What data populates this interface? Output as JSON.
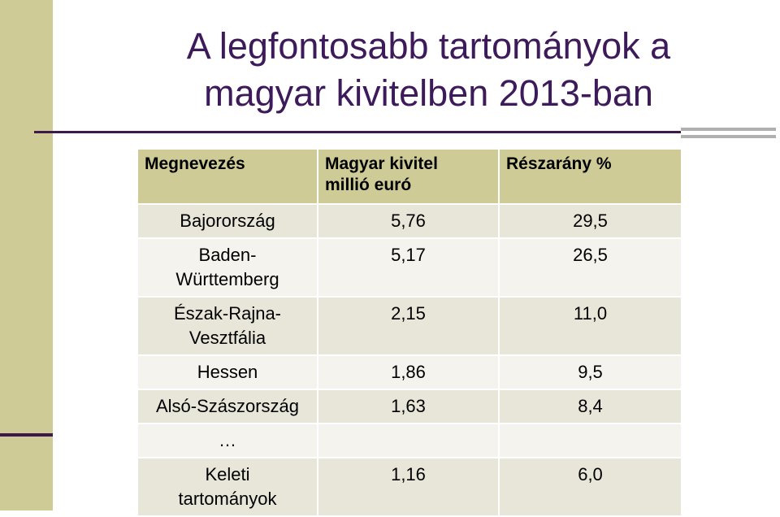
{
  "header": {
    "title": "A legfontosabb tartományok a\nmagyar kivitelben 2013-ban"
  },
  "table": {
    "columns": [
      "Megnevezés",
      "Magyar kivitel\nmillió euró",
      "Részarány %"
    ],
    "rows": [
      [
        "Bajorország",
        "5,76",
        "29,5"
      ],
      [
        "Baden-\nWürttemberg",
        "5,17",
        "26,5"
      ],
      [
        "Észak-Rajna-\nVesztfália",
        "2,15",
        "11,0"
      ],
      [
        "Hessen",
        "1,86",
        "9,5"
      ],
      [
        "Alsó-Szászország",
        "1,63",
        "8,4"
      ],
      [
        "…",
        null,
        null
      ],
      [
        "Keleti\ntartományok",
        "1,16",
        "6,0"
      ]
    ]
  }
}
